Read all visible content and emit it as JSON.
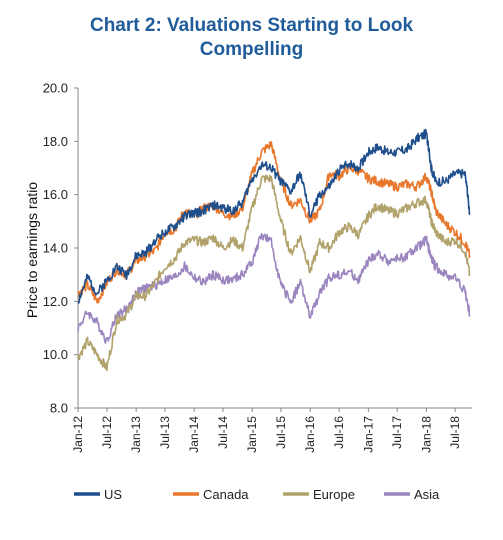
{
  "chart_data": {
    "type": "line",
    "title": "Chart 2: Valuations Starting to Look Compelling",
    "title_lines": [
      "Chart 2: Valuations Starting to Look",
      "Compelling"
    ],
    "xlabel": "",
    "ylabel": "Price to earnings  ratio",
    "ylim": [
      8.0,
      20.0
    ],
    "yticks": [
      "8.0",
      "10.0",
      "12.0",
      "14.0",
      "16.0",
      "18.0",
      "20.0"
    ],
    "xticks": [
      "Jan-12",
      "Jul-12",
      "Jan-13",
      "Jul-13",
      "Jan-14",
      "Jul-14",
      "Jan-15",
      "Jul-15",
      "Jan-16",
      "Jul-16",
      "Jan-17",
      "Jul-17",
      "Jan-18",
      "Jul-18"
    ],
    "grid": false,
    "legend_position": "bottom",
    "x": [
      "2012-01",
      "2012-03",
      "2012-05",
      "2012-07",
      "2012-09",
      "2012-11",
      "2013-01",
      "2013-03",
      "2013-05",
      "2013-07",
      "2013-09",
      "2013-11",
      "2014-01",
      "2014-03",
      "2014-05",
      "2014-07",
      "2014-09",
      "2014-11",
      "2015-01",
      "2015-03",
      "2015-05",
      "2015-07",
      "2015-09",
      "2015-11",
      "2016-01",
      "2016-03",
      "2016-05",
      "2016-07",
      "2016-09",
      "2016-11",
      "2017-01",
      "2017-03",
      "2017-05",
      "2017-07",
      "2017-09",
      "2017-11",
      "2018-01",
      "2018-02",
      "2018-03",
      "2018-05",
      "2018-07",
      "2018-09",
      "2018-10"
    ],
    "series": [
      {
        "name": "US",
        "color": "#1f4e8c",
        "values": [
          12.0,
          12.9,
          12.3,
          12.8,
          13.3,
          13.0,
          13.7,
          13.8,
          14.3,
          14.6,
          14.8,
          15.2,
          15.3,
          15.4,
          15.6,
          15.5,
          15.4,
          15.7,
          16.6,
          17.1,
          17.0,
          16.5,
          16.1,
          16.8,
          15.2,
          16.0,
          16.3,
          16.9,
          17.2,
          17.0,
          17.6,
          17.8,
          17.6,
          17.6,
          17.7,
          18.1,
          18.3,
          17.0,
          16.5,
          16.5,
          16.8,
          16.8,
          15.3
        ]
      },
      {
        "name": "Canada",
        "color": "#e8762b",
        "values": [
          12.3,
          12.6,
          12.0,
          12.7,
          13.2,
          13.0,
          13.5,
          13.7,
          13.9,
          14.6,
          14.7,
          15.4,
          15.2,
          15.5,
          15.6,
          15.3,
          15.2,
          15.5,
          16.8,
          17.6,
          17.9,
          16.5,
          15.6,
          15.8,
          15.0,
          15.4,
          16.8,
          16.7,
          17.0,
          16.9,
          16.6,
          16.5,
          16.4,
          16.3,
          16.4,
          16.3,
          16.7,
          16.1,
          15.4,
          14.9,
          14.6,
          14.2,
          13.7
        ]
      },
      {
        "name": "Europe",
        "color": "#b0a26a",
        "values": [
          9.9,
          10.5,
          10.0,
          9.5,
          11.3,
          11.5,
          12.2,
          12.2,
          12.7,
          13.3,
          13.6,
          14.2,
          14.3,
          14.2,
          14.4,
          14.0,
          14.3,
          14.0,
          15.5,
          16.6,
          16.6,
          15.0,
          13.8,
          14.4,
          13.1,
          14.2,
          14.0,
          14.6,
          14.8,
          14.5,
          15.2,
          15.6,
          15.4,
          15.3,
          15.5,
          15.7,
          15.8,
          15.0,
          14.6,
          14.2,
          14.3,
          13.9,
          13.0
        ]
      },
      {
        "name": "Asia",
        "color": "#9a85bf",
        "values": [
          11.0,
          11.6,
          11.2,
          10.5,
          11.5,
          11.7,
          12.3,
          12.5,
          12.6,
          12.8,
          12.9,
          13.3,
          12.9,
          12.7,
          13.0,
          12.8,
          12.8,
          13.0,
          13.5,
          14.5,
          14.2,
          12.6,
          12.0,
          12.7,
          11.4,
          12.3,
          12.9,
          13.0,
          13.1,
          12.8,
          13.5,
          13.8,
          13.5,
          13.6,
          13.7,
          14.0,
          14.3,
          13.6,
          13.3,
          13.0,
          12.9,
          12.4,
          11.5
        ]
      }
    ]
  }
}
